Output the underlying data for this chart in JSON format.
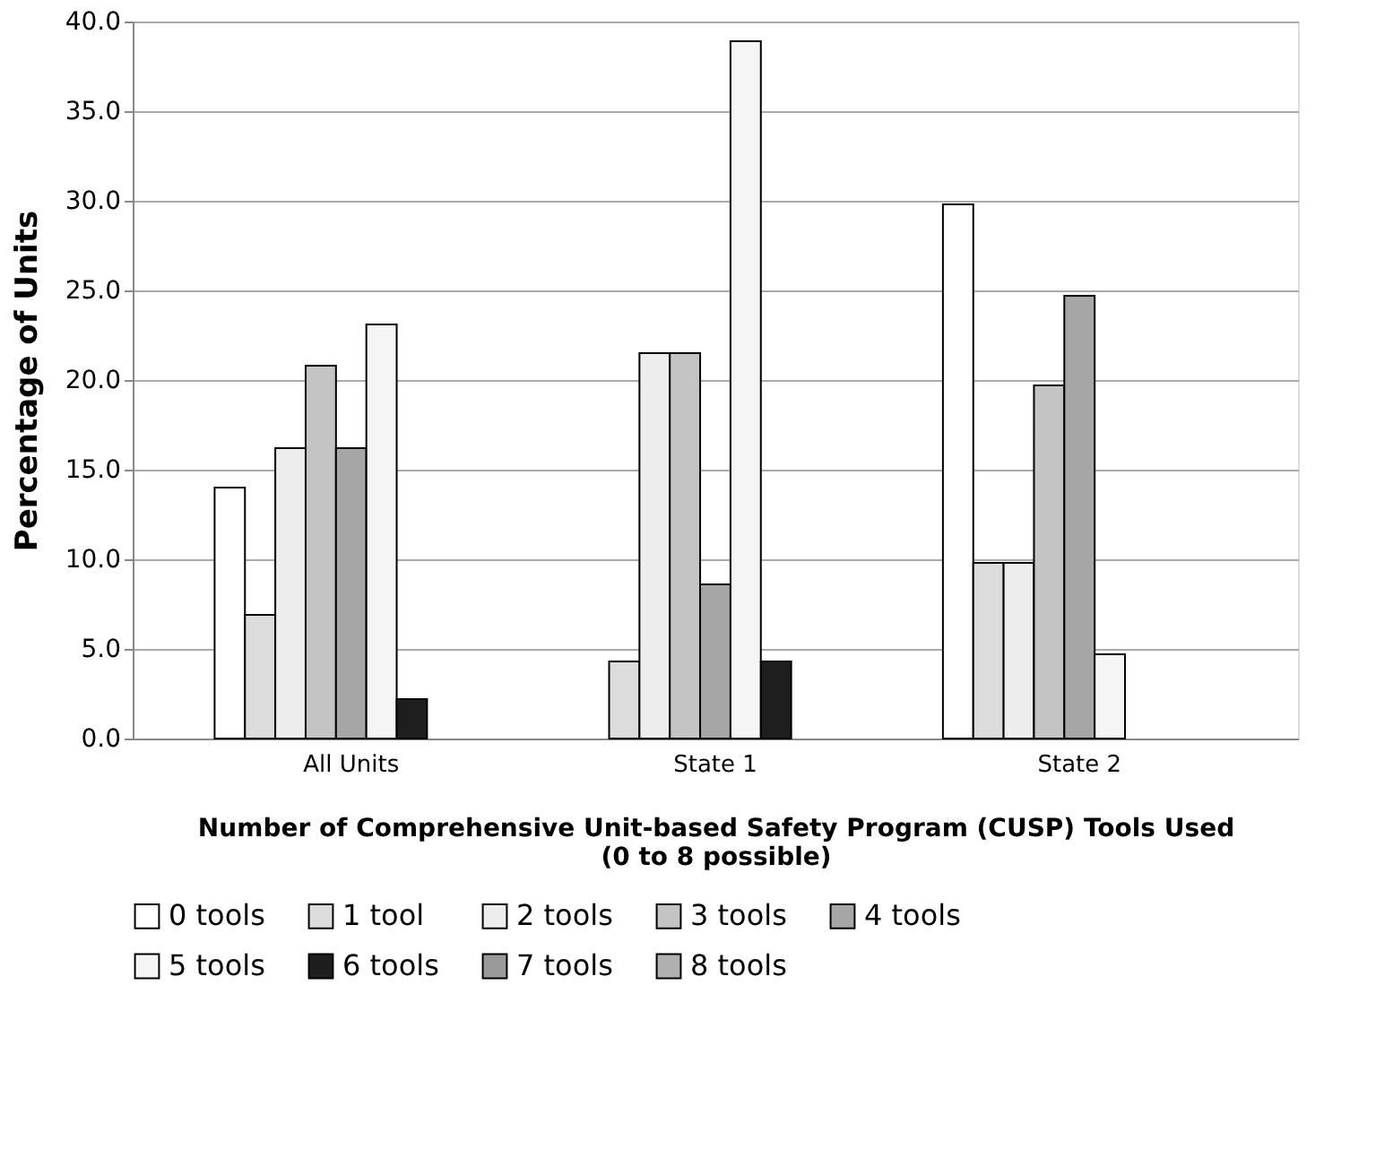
{
  "chart_data": {
    "type": "bar",
    "categories": [
      "All Units",
      "State 1",
      "State 2"
    ],
    "xlabel": "Number of Comprehensive Unit-based Safety Program (CUSP) Tools Used\n(0 to 8 possible)",
    "ylabel": "Percentage of Units",
    "ylim": [
      0,
      40
    ],
    "yticks": [
      {
        "value": 0,
        "label": "0.0"
      },
      {
        "value": 5,
        "label": "5.0"
      },
      {
        "value": 10,
        "label": "10.0"
      },
      {
        "value": 15,
        "label": "15.0"
      },
      {
        "value": 20,
        "label": "20.0"
      },
      {
        "value": 25,
        "label": "25.0"
      },
      {
        "value": 30,
        "label": "30.0"
      },
      {
        "value": 35,
        "label": "35.0"
      },
      {
        "value": 40,
        "label": "40.0"
      }
    ],
    "grid": "y",
    "legend": "bottom",
    "series": [
      {
        "name": "0 tools",
        "color": "#ffffff",
        "values": [
          14.0,
          0,
          29.8
        ]
      },
      {
        "name": "1 tool",
        "color": "#dcdcdc",
        "values": [
          6.9,
          4.3,
          9.8
        ]
      },
      {
        "name": "2 tools",
        "color": "#ededed",
        "values": [
          16.2,
          21.5,
          9.8
        ]
      },
      {
        "name": "3 tools",
        "color": "#c4c4c4",
        "values": [
          20.8,
          21.5,
          19.7
        ]
      },
      {
        "name": "4 tools",
        "color": "#a6a6a6",
        "values": [
          16.2,
          8.6,
          24.7
        ]
      },
      {
        "name": "5 tools",
        "color": "#f5f5f5",
        "values": [
          23.1,
          38.9,
          4.7
        ]
      },
      {
        "name": "6 tools",
        "color": "#1e1e1e",
        "values": [
          2.2,
          4.3,
          0
        ]
      },
      {
        "name": "7 tools",
        "color": "#9a9a9a",
        "values": [
          0,
          0,
          0
        ]
      },
      {
        "name": "8 tools",
        "color": "#b0b0b0",
        "values": [
          0,
          0,
          0
        ]
      }
    ]
  }
}
